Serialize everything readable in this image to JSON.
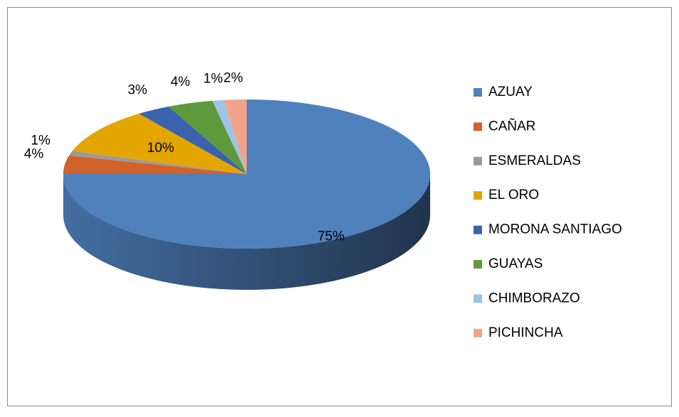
{
  "chart_data": {
    "type": "pie",
    "categories": [
      "AZUAY",
      "CAÑAR",
      "ESMERALDAS",
      "EL ORO",
      "MORONA SANTIAGO",
      "GUAYAS",
      "CHIMBORAZO",
      "PICHINCHA"
    ],
    "values": [
      75,
      4,
      1,
      10,
      3,
      4,
      1,
      2
    ],
    "value_labels": [
      "75%",
      "4%",
      "1%",
      "10%",
      "3%",
      "4%",
      "1%",
      "2%"
    ],
    "colors": [
      "#4f81bd",
      "#d0622a",
      "#9a9a9a",
      "#e3a600",
      "#3a62ad",
      "#5e9a3c",
      "#9dc3e6",
      "#f2a48a"
    ],
    "legend": "right"
  }
}
